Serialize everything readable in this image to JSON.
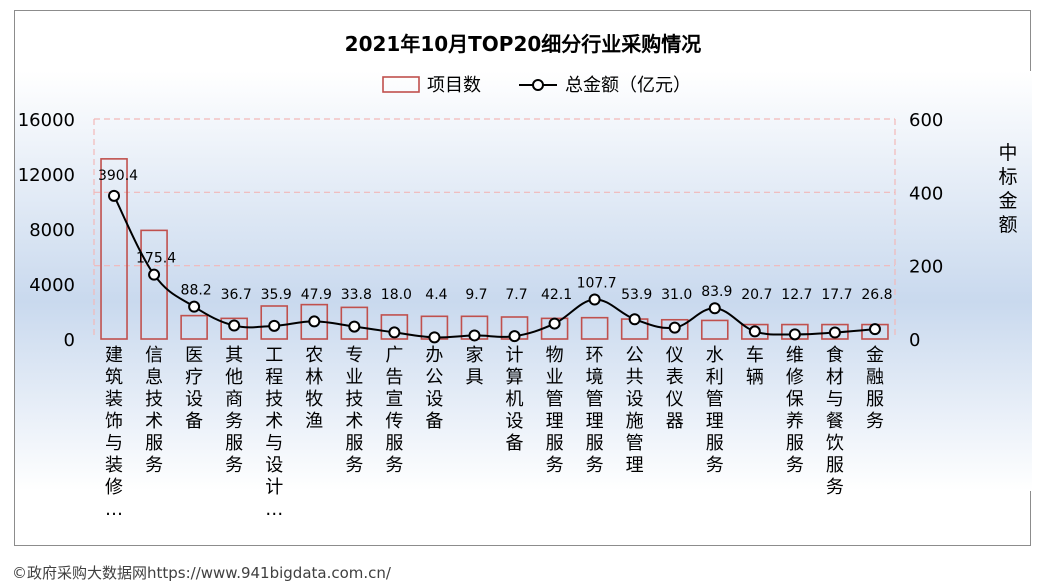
{
  "chart_data": {
    "type": "bar+line",
    "title": "2021年10月TOP20细分行业采购情况",
    "legend": {
      "position": "top",
      "bar_label": "项目数",
      "line_label": "总金额（亿元）"
    },
    "categories": [
      "建筑装饰与装修…",
      "信息技术服务",
      "医疗设备",
      "其他商务服务",
      "工程技术与设计…",
      "农林牧渔",
      "专业技术服务",
      "广告宣传服务",
      "办公设备",
      "家具",
      "计算机设备",
      "物业管理服务",
      "环境管理服务",
      "公共设施管理",
      "仪表仪器",
      "水利管理服务",
      "车辆",
      "维修保养服务",
      "食材与餐饮服务",
      "金融服务"
    ],
    "series": [
      {
        "name": "项目数",
        "type": "bar",
        "axis": "left",
        "values": [
          13100,
          7900,
          1700,
          1500,
          2400,
          2500,
          2300,
          1750,
          1650,
          1650,
          1600,
          1500,
          1550,
          1450,
          1400,
          1350,
          1050,
          1050,
          1050,
          1050
        ]
      },
      {
        "name": "总金额（亿元）",
        "type": "line",
        "axis": "right",
        "values": [
          390.4,
          175.4,
          88.2,
          36.7,
          35.9,
          47.9,
          33.8,
          18.0,
          4.4,
          9.7,
          7.7,
          42.1,
          107.7,
          53.9,
          31.0,
          83.9,
          20.7,
          12.7,
          17.7,
          26.8
        ],
        "labels": [
          "390.4",
          "175.4",
          "88.2",
          "36.7",
          "35.9",
          "47.9",
          "33.8",
          "18.0",
          "4.4",
          "9.7",
          "7.7",
          "42.1",
          "107.7",
          "53.9",
          "31.0",
          "83.9",
          "20.7",
          "12.7",
          "17.7",
          "26.8"
        ]
      }
    ],
    "y_left": {
      "ylim": [
        0,
        16000
      ],
      "ticks": [
        "0",
        "4000",
        "8000",
        "12000",
        "16000"
      ]
    },
    "y_right": {
      "ylim": [
        0,
        600
      ],
      "ticks": [
        "0",
        "200",
        "400",
        "600"
      ],
      "label": "中标金额"
    },
    "grid": true,
    "colors": {
      "bar_stroke": "#c0504d",
      "line": "#000000",
      "grid": "#f2b8b8",
      "background_gradient_mid": "#c9d9ee"
    }
  },
  "footer": "©政府采购大数据网https://www.941bigdata.com.cn/"
}
